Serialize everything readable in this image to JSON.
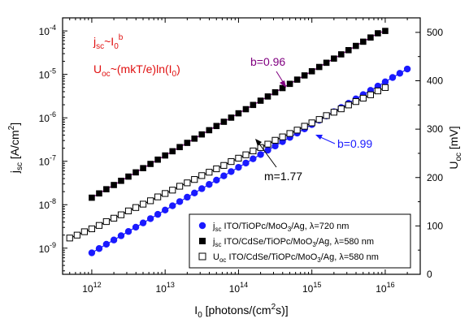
{
  "chart_data": {
    "type": "scatter",
    "x_axis": {
      "label_main": "I",
      "label_sub": "0",
      "label_rest": " [photons/(cm",
      "label_sup": "2",
      "label_end": "s)]",
      "scale": "log",
      "range": [
        400000000000.0,
        3e+16
      ],
      "ticks": [
        {
          "value": 1000000000000.0,
          "base": "10",
          "exp": "12"
        },
        {
          "value": 10000000000000.0,
          "base": "10",
          "exp": "13"
        },
        {
          "value": 100000000000000.0,
          "base": "10",
          "exp": "14"
        },
        {
          "value": 1000000000000000.0,
          "base": "10",
          "exp": "15"
        },
        {
          "value": 1e+16,
          "base": "10",
          "exp": "16"
        }
      ]
    },
    "y_left": {
      "label_main": "j",
      "label_sub": "sc",
      "label_rest": " [A/cm",
      "label_sup": "2",
      "label_end": "]",
      "scale": "log",
      "range": [
        2.5e-10,
        0.0002
      ],
      "ticks": [
        {
          "value": 1e-09,
          "base": "10",
          "exp": "-9"
        },
        {
          "value": 1e-08,
          "base": "10",
          "exp": "-8"
        },
        {
          "value": 1e-07,
          "base": "10",
          "exp": "-7"
        },
        {
          "value": 1e-06,
          "base": "10",
          "exp": "-6"
        },
        {
          "value": 1e-05,
          "base": "10",
          "exp": "-5"
        },
        {
          "value": 0.0001,
          "base": "10",
          "exp": "-4"
        }
      ]
    },
    "y_right": {
      "label_main": "U",
      "label_sub": "oc",
      "label_rest": " [mV]",
      "scale": "linear",
      "range": [
        0,
        530
      ],
      "ticks": [
        0,
        100,
        200,
        300,
        400,
        500
      ]
    },
    "series": [
      {
        "axis": "left",
        "marker": "circle-filled",
        "color": "#1a1aff",
        "legend_main": "j",
        "legend_sub": "sc",
        "legend_text": " ITO/TiOPc/MoO",
        "legend_sub2": "3",
        "legend_text2": "/Ag, λ=720 nm",
        "x": [
          1000000000000.0,
          1260000000000.0,
          1580000000000.0,
          2000000000000.0,
          2510000000000.0,
          3160000000000.0,
          3980000000000.0,
          5010000000000.0,
          6310000000000.0,
          7940000000000.0,
          10000000000000.0,
          12600000000000.0,
          15800000000000.0,
          20000000000000.0,
          25100000000000.0,
          31600000000000.0,
          39800000000000.0,
          50100000000000.0,
          63100000000000.0,
          79400000000000.0,
          100000000000000.0,
          126000000000000.0,
          158000000000000.0,
          200000000000000.0,
          251000000000000.0,
          316000000000000.0,
          398000000000000.0,
          501000000000000.0,
          631000000000000.0,
          794000000000000.0,
          1000000000000000.0,
          1260000000000000.0,
          1580000000000000.0,
          2000000000000000.0,
          2510000000000000.0,
          3160000000000000.0,
          3980000000000000.0,
          5010000000000000.0,
          6310000000000000.0,
          7940000000000000.0,
          1e+16,
          1.26e+16,
          1.58e+16,
          2e+16
        ],
        "y": [
          7.8e-10,
          9.8e-10,
          1.23e-09,
          1.54e-09,
          1.93e-09,
          2.42e-09,
          3.04e-09,
          3.81e-09,
          4.78e-09,
          6e-09,
          7.53e-09,
          9.44e-09,
          1.18e-08,
          1.49e-08,
          1.86e-08,
          2.34e-08,
          2.93e-08,
          3.68e-08,
          4.61e-08,
          5.79e-08,
          7.26e-08,
          9.1e-08,
          1.14e-07,
          1.43e-07,
          1.8e-07,
          2.25e-07,
          2.83e-07,
          3.55e-07,
          4.45e-07,
          5.58e-07,
          7e-07,
          8.78e-07,
          1.1e-06,
          1.38e-06,
          1.73e-06,
          2.17e-06,
          2.73e-06,
          3.42e-06,
          4.29e-06,
          5.38e-06,
          6.75e-06,
          8.47e-06,
          1.06e-05,
          1.33e-05
        ],
        "fit_color": "#1a1aff"
      },
      {
        "axis": "left",
        "marker": "square-filled",
        "color": "#000000",
        "legend_main": "j",
        "legend_sub": "sc",
        "legend_text": " ITO/CdSe/TiOPc/MoO",
        "legend_sub2": "3",
        "legend_text2": "/Ag, λ=580 nm",
        "x": [
          1000000000000.0,
          1260000000000.0,
          1580000000000.0,
          2000000000000.0,
          2510000000000.0,
          3160000000000.0,
          3980000000000.0,
          5010000000000.0,
          6310000000000.0,
          7940000000000.0,
          10000000000000.0,
          12600000000000.0,
          15800000000000.0,
          20000000000000.0,
          25100000000000.0,
          31600000000000.0,
          39800000000000.0,
          50100000000000.0,
          63100000000000.0,
          79400000000000.0,
          100000000000000.0,
          126000000000000.0,
          158000000000000.0,
          200000000000000.0,
          251000000000000.0,
          316000000000000.0,
          398000000000000.0,
          501000000000000.0,
          631000000000000.0,
          794000000000000.0,
          1000000000000000.0,
          1260000000000000.0,
          1580000000000000.0,
          2000000000000000.0,
          2510000000000000.0,
          3160000000000000.0,
          3980000000000000.0,
          5010000000000000.0,
          6310000000000000.0,
          7940000000000000.0,
          1e+16
        ],
        "y": [
          1.45e-08,
          1.82e-08,
          2.27e-08,
          2.84e-08,
          3.55e-08,
          4.44e-08,
          5.55e-08,
          6.94e-08,
          8.68e-08,
          1.09e-07,
          1.36e-07,
          1.7e-07,
          2.12e-07,
          2.65e-07,
          3.32e-07,
          4.15e-07,
          5.19e-07,
          6.48e-07,
          8.11e-07,
          1.01e-06,
          1.27e-06,
          1.58e-06,
          1.98e-06,
          2.48e-06,
          3.1e-06,
          3.87e-06,
          4.84e-06,
          6.05e-06,
          7.57e-06,
          9.46e-06,
          1.18e-05,
          1.48e-05,
          1.85e-05,
          2.31e-05,
          2.89e-05,
          3.61e-05,
          4.52e-05,
          5.65e-05,
          7.06e-05,
          8.83e-05,
          0.0001
        ],
        "fit_color": "#800080"
      },
      {
        "axis": "right",
        "marker": "square-open",
        "color": "#000000",
        "legend_main": "U",
        "legend_sub": "oc",
        "legend_text": " ITO/CdSe/TiOPc/MoO",
        "legend_sub2": "3",
        "legend_text2": "/Ag, λ=580 nm",
        "x": [
          500000000000.0,
          631000000000.0,
          794000000000.0,
          1000000000000.0,
          1260000000000.0,
          1580000000000.0,
          2000000000000.0,
          2510000000000.0,
          3160000000000.0,
          3980000000000.0,
          5010000000000.0,
          6310000000000.0,
          7940000000000.0,
          10000000000000.0,
          12600000000000.0,
          15800000000000.0,
          20000000000000.0,
          25100000000000.0,
          31600000000000.0,
          39800000000000.0,
          50100000000000.0,
          63100000000000.0,
          79400000000000.0,
          100000000000000.0,
          126000000000000.0,
          158000000000000.0,
          200000000000000.0,
          251000000000000.0,
          316000000000000.0,
          398000000000000.0,
          501000000000000.0,
          631000000000000.0,
          794000000000000.0,
          1000000000000000.0,
          1260000000000000.0,
          1580000000000000.0,
          2000000000000000.0,
          2510000000000000.0,
          3160000000000000.0,
          3980000000000000.0,
          5010000000000000.0,
          6310000000000000.0,
          7940000000000000.0,
          1e+16
        ],
        "y": [
          75,
          81,
          88,
          94,
          101,
          109,
          116,
          123,
          131,
          138,
          145,
          152,
          160,
          167,
          174,
          182,
          189,
          196,
          204,
          211,
          218,
          225,
          233,
          240,
          247,
          255,
          262,
          269,
          277,
          284,
          291,
          298,
          306,
          313,
          320,
          328,
          335,
          342,
          350,
          357,
          364,
          371,
          379,
          386
        ],
        "fit_color": "#000000"
      }
    ],
    "annotations": [
      {
        "main": "j",
        "sub": "sc",
        "mid": "~I",
        "sub2": "0",
        "sup": "b",
        "color": "#e01010"
      },
      {
        "main": "U",
        "sub": "oc",
        "mid": "~(mkT/e)ln(I",
        "sub2": "0",
        "end": ")",
        "color": "#e01010"
      },
      {
        "text": "b=0.96",
        "color": "#800080"
      },
      {
        "text": "b=0.99",
        "color": "#1a1aff"
      },
      {
        "text": "m=1.77",
        "color": "#000000"
      }
    ],
    "legend_position": "bottom-right",
    "grid": false
  }
}
